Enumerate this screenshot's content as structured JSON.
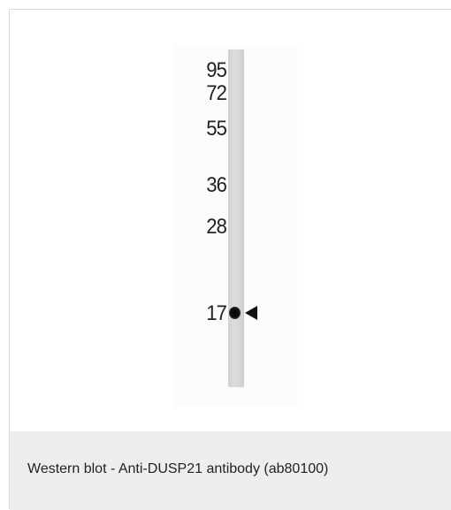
{
  "figure": {
    "markers": [
      {
        "label": "95"
      },
      {
        "label": "72"
      },
      {
        "label": "55"
      },
      {
        "label": "36"
      },
      {
        "label": "28"
      },
      {
        "label": "17"
      }
    ],
    "band_marker_label": "17",
    "arrow_icon": "triangle-left-icon"
  },
  "caption": {
    "text": "Western blot - Anti-DUSP21 antibody (ab80100)"
  },
  "colors": {
    "caption_background": "#edefef",
    "lane": "#d8d8d8",
    "band": "#0a0a0a"
  }
}
